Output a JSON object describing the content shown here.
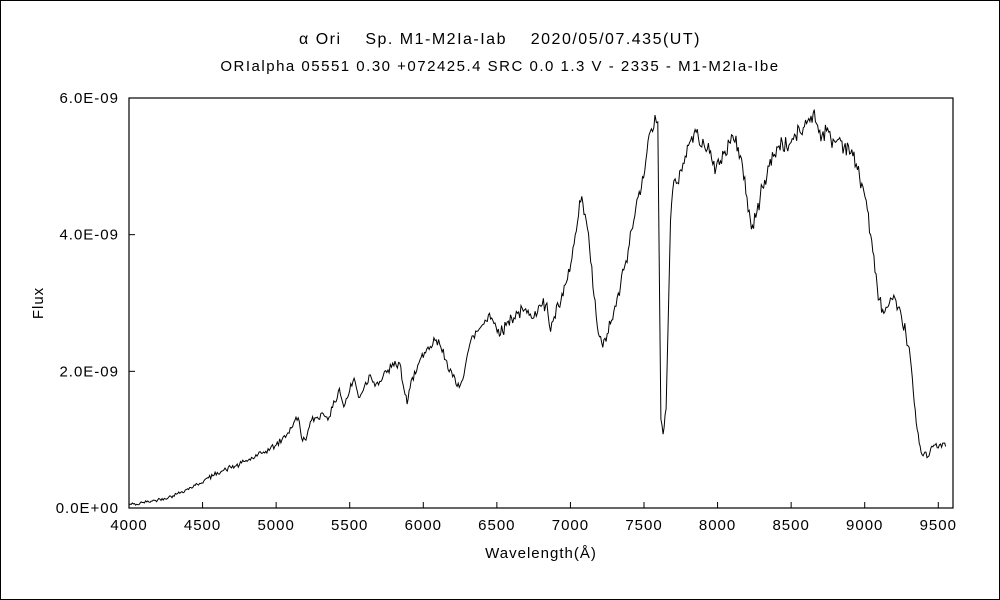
{
  "figure": {
    "title_line1": "α Ori    Sp. M1-M2Ia-Iab    2020/05/07.435(UT)",
    "title_line2": "ORIalpha 05551 0.30 +072425.4 SRC 0.0 1.3 V - 2335 - M1-M2Ia-Ibe"
  },
  "chart_data": {
    "type": "line",
    "title": "α Ori  Sp. M1-M2Ia-Iab  2020/05/07.435(UT)",
    "subtitle": "ORIalpha 05551 0.30 +072425.4 SRC 0.0 1.3 V - 2335 - M1-M2Ia-Ibe",
    "xlabel": "Wavelength(Å)",
    "ylabel": "Flux",
    "grid": false,
    "legend": "none",
    "line_color": "#000000",
    "flux_scale": "1e-9",
    "xlim": [
      4000,
      9600
    ],
    "ylim": [
      0,
      6.0
    ],
    "x_ticks": [
      4000,
      4500,
      5000,
      5500,
      6000,
      6500,
      7000,
      7500,
      8000,
      8500,
      9000,
      9500
    ],
    "y_ticks": [
      {
        "v": 0.0,
        "label": "0.0E+00"
      },
      {
        "v": 2.0,
        "label": "2.0E-09"
      },
      {
        "v": 4.0,
        "label": "4.0E-09"
      },
      {
        "v": 6.0,
        "label": "6.0E-09"
      }
    ],
    "series": [
      {
        "name": "flux",
        "points": [
          [
            4000,
            0.05
          ],
          [
            4030,
            0.06
          ],
          [
            4060,
            0.05
          ],
          [
            4090,
            0.08
          ],
          [
            4120,
            0.09
          ],
          [
            4150,
            0.1
          ],
          [
            4180,
            0.11
          ],
          [
            4210,
            0.13
          ],
          [
            4240,
            0.14
          ],
          [
            4270,
            0.16
          ],
          [
            4300,
            0.18
          ],
          [
            4330,
            0.21
          ],
          [
            4360,
            0.24
          ],
          [
            4390,
            0.27
          ],
          [
            4420,
            0.3
          ],
          [
            4450,
            0.33
          ],
          [
            4480,
            0.36
          ],
          [
            4510,
            0.4
          ],
          [
            4540,
            0.44
          ],
          [
            4570,
            0.47
          ],
          [
            4600,
            0.52
          ],
          [
            4630,
            0.54
          ],
          [
            4660,
            0.56
          ],
          [
            4690,
            0.6
          ],
          [
            4720,
            0.61
          ],
          [
            4750,
            0.63
          ],
          [
            4780,
            0.68
          ],
          [
            4810,
            0.7
          ],
          [
            4840,
            0.73
          ],
          [
            4870,
            0.76
          ],
          [
            4900,
            0.8
          ],
          [
            4930,
            0.83
          ],
          [
            4960,
            0.87
          ],
          [
            5000,
            0.92
          ],
          [
            5040,
            1.0
          ],
          [
            5080,
            1.1
          ],
          [
            5120,
            1.25
          ],
          [
            5150,
            1.32
          ],
          [
            5180,
            0.98
          ],
          [
            5210,
            1.06
          ],
          [
            5240,
            1.28
          ],
          [
            5280,
            1.33
          ],
          [
            5320,
            1.38
          ],
          [
            5360,
            1.33
          ],
          [
            5400,
            1.55
          ],
          [
            5430,
            1.75
          ],
          [
            5460,
            1.48
          ],
          [
            5500,
            1.72
          ],
          [
            5530,
            1.9
          ],
          [
            5560,
            1.62
          ],
          [
            5600,
            1.78
          ],
          [
            5640,
            1.95
          ],
          [
            5680,
            1.82
          ],
          [
            5720,
            1.88
          ],
          [
            5760,
            2.02
          ],
          [
            5800,
            2.08
          ],
          [
            5840,
            2.12
          ],
          [
            5870,
            1.72
          ],
          [
            5890,
            1.52
          ],
          [
            5910,
            1.75
          ],
          [
            5940,
            2.0
          ],
          [
            5970,
            2.12
          ],
          [
            6000,
            2.2
          ],
          [
            6040,
            2.32
          ],
          [
            6080,
            2.45
          ],
          [
            6120,
            2.35
          ],
          [
            6160,
            2.15
          ],
          [
            6200,
            1.92
          ],
          [
            6230,
            1.78
          ],
          [
            6260,
            1.85
          ],
          [
            6300,
            2.25
          ],
          [
            6340,
            2.52
          ],
          [
            6380,
            2.62
          ],
          [
            6420,
            2.75
          ],
          [
            6450,
            2.85
          ],
          [
            6480,
            2.7
          ],
          [
            6510,
            2.62
          ],
          [
            6540,
            2.58
          ],
          [
            6570,
            2.72
          ],
          [
            6600,
            2.78
          ],
          [
            6640,
            2.85
          ],
          [
            6680,
            2.88
          ],
          [
            6720,
            2.82
          ],
          [
            6760,
            2.88
          ],
          [
            6800,
            2.95
          ],
          [
            6840,
            3.0
          ],
          [
            6865,
            2.58
          ],
          [
            6890,
            2.8
          ],
          [
            6920,
            2.95
          ],
          [
            6950,
            3.1
          ],
          [
            6980,
            3.35
          ],
          [
            7010,
            3.65
          ],
          [
            7040,
            4.05
          ],
          [
            7070,
            4.48
          ],
          [
            7100,
            4.3
          ],
          [
            7130,
            3.8
          ],
          [
            7160,
            3.1
          ],
          [
            7190,
            2.55
          ],
          [
            7220,
            2.35
          ],
          [
            7250,
            2.55
          ],
          [
            7280,
            2.75
          ],
          [
            7310,
            2.95
          ],
          [
            7340,
            3.25
          ],
          [
            7370,
            3.55
          ],
          [
            7400,
            3.85
          ],
          [
            7430,
            4.2
          ],
          [
            7460,
            4.55
          ],
          [
            7490,
            4.85
          ],
          [
            7520,
            5.2
          ],
          [
            7550,
            5.55
          ],
          [
            7575,
            5.75
          ],
          [
            7594,
            5.65
          ],
          [
            7605,
            3.2
          ],
          [
            7615,
            1.3
          ],
          [
            7630,
            1.08
          ],
          [
            7650,
            1.45
          ],
          [
            7665,
            2.8
          ],
          [
            7680,
            4.2
          ],
          [
            7695,
            4.65
          ],
          [
            7720,
            4.75
          ],
          [
            7750,
            4.95
          ],
          [
            7780,
            5.15
          ],
          [
            7810,
            5.35
          ],
          [
            7840,
            5.48
          ],
          [
            7870,
            5.42
          ],
          [
            7900,
            5.4
          ],
          [
            7930,
            5.25
          ],
          [
            7960,
            5.1
          ],
          [
            7990,
            4.98
          ],
          [
            8020,
            5.08
          ],
          [
            8050,
            5.22
          ],
          [
            8080,
            5.35
          ],
          [
            8110,
            5.38
          ],
          [
            8140,
            5.28
          ],
          [
            8170,
            5.0
          ],
          [
            8200,
            4.55
          ],
          [
            8230,
            4.08
          ],
          [
            8260,
            4.25
          ],
          [
            8290,
            4.55
          ],
          [
            8320,
            4.8
          ],
          [
            8350,
            5.0
          ],
          [
            8380,
            5.15
          ],
          [
            8410,
            5.28
          ],
          [
            8440,
            5.35
          ],
          [
            8470,
            5.28
          ],
          [
            8500,
            5.35
          ],
          [
            8530,
            5.45
          ],
          [
            8560,
            5.5
          ],
          [
            8590,
            5.58
          ],
          [
            8620,
            5.7
          ],
          [
            8650,
            5.78
          ],
          [
            8680,
            5.6
          ],
          [
            8710,
            5.45
          ],
          [
            8740,
            5.52
          ],
          [
            8770,
            5.4
          ],
          [
            8800,
            5.35
          ],
          [
            8830,
            5.42
          ],
          [
            8860,
            5.28
          ],
          [
            8890,
            5.3
          ],
          [
            8920,
            5.15
          ],
          [
            8950,
            4.95
          ],
          [
            8980,
            4.75
          ],
          [
            9010,
            4.5
          ],
          [
            9040,
            4.0
          ],
          [
            9070,
            3.45
          ],
          [
            9100,
            3.05
          ],
          [
            9130,
            2.85
          ],
          [
            9160,
            2.95
          ],
          [
            9190,
            3.05
          ],
          [
            9220,
            2.9
          ],
          [
            9250,
            2.8
          ],
          [
            9280,
            2.55
          ],
          [
            9310,
            2.2
          ],
          [
            9330,
            1.7
          ],
          [
            9350,
            1.25
          ],
          [
            9370,
            0.95
          ],
          [
            9390,
            0.78
          ],
          [
            9410,
            0.82
          ],
          [
            9430,
            0.75
          ],
          [
            9450,
            0.88
          ],
          [
            9470,
            0.92
          ],
          [
            9500,
            0.88
          ],
          [
            9530,
            0.95
          ],
          [
            9550,
            0.9
          ]
        ]
      }
    ]
  }
}
